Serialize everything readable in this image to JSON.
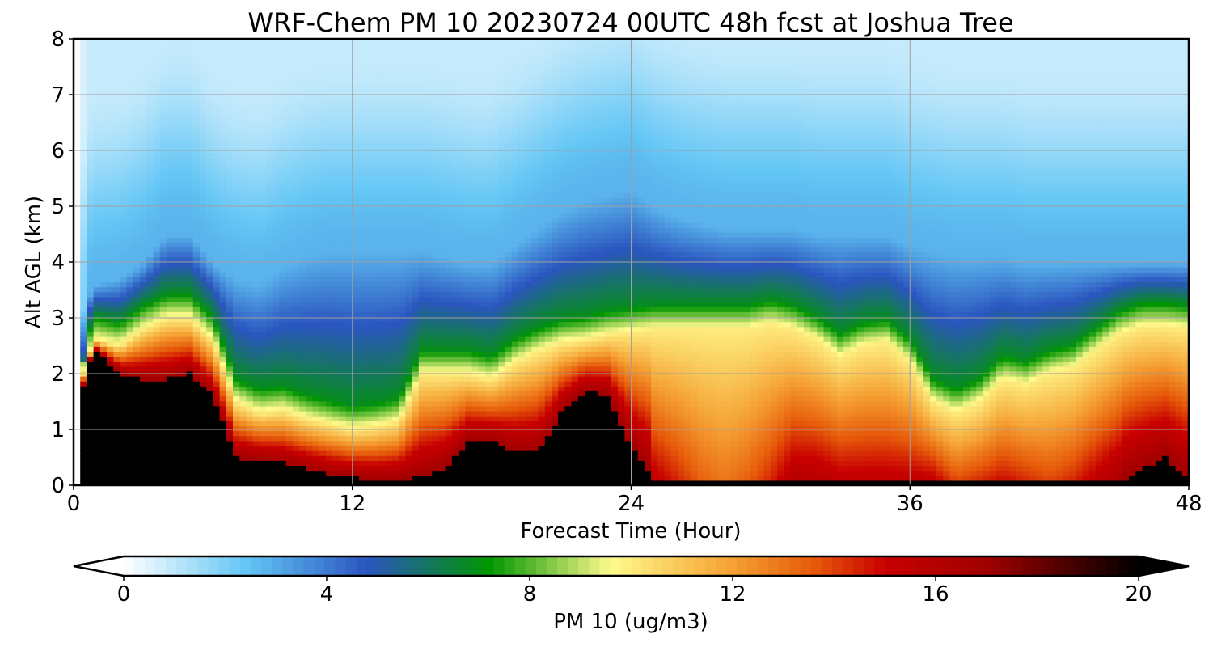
{
  "chart_data": {
    "type": "heatmap",
    "title": "WRF-Chem PM 10  20230724 00UTC 48h fcst at Joshua Tree",
    "xlabel": "Forecast Time (Hour)",
    "ylabel": "Alt AGL (km)",
    "xlim": [
      0,
      48
    ],
    "ylim": [
      0,
      8
    ],
    "x_ticks": [
      "0",
      "12",
      "24",
      "36",
      "48"
    ],
    "y_ticks": [
      "0",
      "1",
      "2",
      "3",
      "4",
      "5",
      "6",
      "7",
      "8"
    ],
    "grid": true,
    "colorbar": {
      "label": "PM 10  (ug/m3)",
      "min": 0,
      "max": 20,
      "ticks": [
        "0",
        "4",
        "8",
        "12",
        "16",
        "20"
      ],
      "extend": "both",
      "stops": [
        {
          "v": 0,
          "c": "#ffffff"
        },
        {
          "v": 2.4,
          "c": "#63c6f5"
        },
        {
          "v": 4.8,
          "c": "#2a55bf"
        },
        {
          "v": 7.2,
          "c": "#009600"
        },
        {
          "v": 9.6,
          "c": "#fffa8c"
        },
        {
          "v": 12,
          "c": "#f5a032"
        },
        {
          "v": 13.6,
          "c": "#e65a0a"
        },
        {
          "v": 15,
          "c": "#c80000"
        },
        {
          "v": 17,
          "c": "#a00000"
        },
        {
          "v": 20,
          "c": "#000000"
        }
      ]
    },
    "hours": [
      0,
      0.3,
      0.6,
      1,
      2,
      3,
      4,
      5,
      6,
      7,
      8,
      9,
      10,
      11,
      12,
      13,
      14,
      15,
      16,
      17,
      18,
      19,
      20,
      21,
      22,
      23,
      24,
      25,
      26,
      27,
      28,
      29,
      30,
      31,
      32,
      33,
      34,
      35,
      36,
      37,
      38,
      39,
      40,
      41,
      42,
      43,
      44,
      45,
      46,
      47,
      48
    ],
    "dust_top_km": [
      0,
      1.8,
      2.3,
      2.6,
      2.5,
      2.8,
      3.0,
      3.0,
      2.6,
      1.5,
      1.3,
      1.35,
      1.2,
      1.1,
      1.0,
      1.05,
      1.15,
      2.0,
      2.0,
      2.0,
      1.9,
      2.2,
      2.4,
      2.55,
      2.6,
      2.7,
      2.75,
      2.8,
      2.8,
      2.8,
      2.8,
      2.8,
      2.9,
      2.8,
      2.6,
      2.3,
      2.5,
      2.55,
      2.2,
      1.5,
      1.3,
      1.5,
      1.9,
      1.8,
      2.0,
      2.1,
      2.4,
      2.7,
      2.85,
      2.85,
      2.8
    ],
    "black_top_km": [
      0,
      1.5,
      2.2,
      2.4,
      2.0,
      1.9,
      1.9,
      2.0,
      1.6,
      0.5,
      0.45,
      0.4,
      0.3,
      0.2,
      0.15,
      0.1,
      0.1,
      0.15,
      0.3,
      0.8,
      0.8,
      0.6,
      0.6,
      1.3,
      1.7,
      1.6,
      0.7,
      0.05,
      0.05,
      0.05,
      0.05,
      0.05,
      0.05,
      0.05,
      0.05,
      0.05,
      0.05,
      0.05,
      0.05,
      0.05,
      0.05,
      0.05,
      0.05,
      0.05,
      0.05,
      0.05,
      0.05,
      0.05,
      0.3,
      0.5,
      0.1
    ],
    "core_value": [
      0,
      20,
      20,
      20,
      20,
      20,
      20,
      20,
      20,
      20,
      20,
      20,
      20,
      20,
      20,
      20,
      20,
      20,
      20,
      20,
      20,
      20,
      20,
      20,
      20,
      20,
      20,
      15.5,
      14.5,
      13.5,
      13,
      13.5,
      14.5,
      16,
      16,
      15.5,
      15.5,
      15.5,
      15.5,
      15.5,
      14,
      14.5,
      15,
      14.5,
      14,
      14.5,
      15.5,
      16.5,
      17,
      18,
      17
    ],
    "blue_top_km": [
      0,
      3.0,
      3.4,
      3.6,
      3.7,
      4.0,
      4.5,
      4.5,
      4.0,
      3.7,
      3.6,
      3.9,
      4.1,
      4.2,
      4.2,
      4.2,
      4.2,
      4.2,
      4.1,
      4.0,
      4.0,
      4.3,
      4.6,
      4.9,
      5.1,
      5.2,
      5.3,
      5.0,
      4.8,
      4.7,
      4.6,
      4.6,
      4.6,
      4.6,
      4.5,
      4.5,
      4.5,
      4.5,
      4.3,
      4.2,
      4.1,
      4.1,
      4.1,
      4.0,
      4.0,
      4.0,
      4.0,
      4.0,
      4.0,
      4.0,
      4.0
    ]
  }
}
